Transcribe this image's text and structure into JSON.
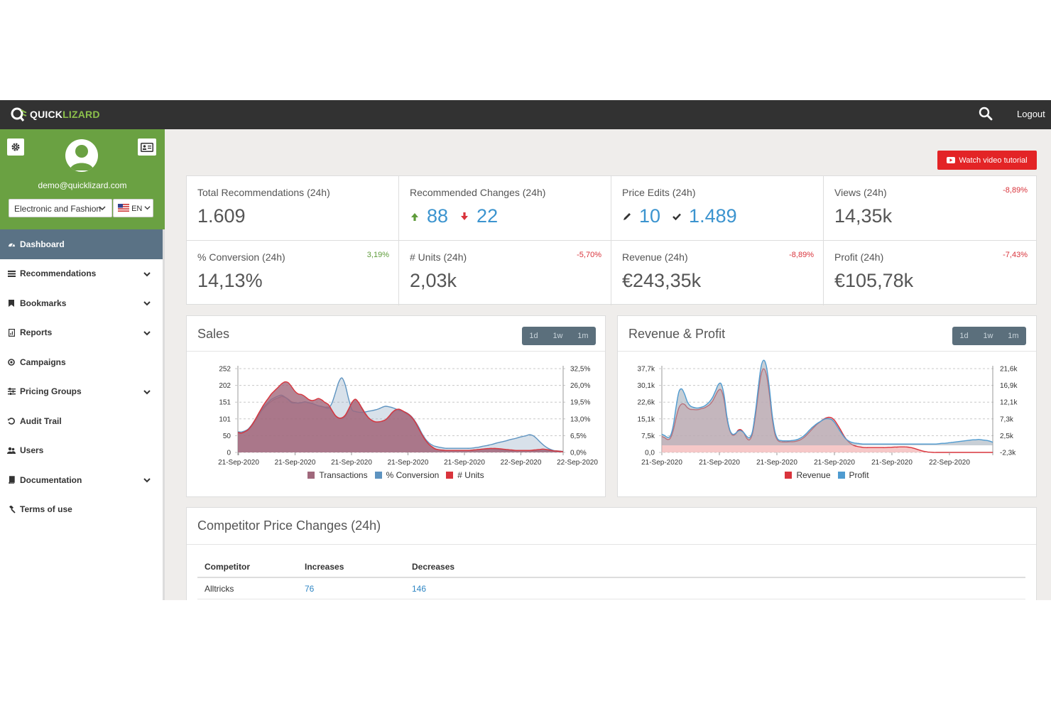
{
  "app": {
    "logo_primary": "QUICK",
    "logo_secondary": "LIZARD",
    "logout": "Logout",
    "watch_tutorial": "Watch video tutorial"
  },
  "user": {
    "email": "demo@quicklizard.com",
    "shop_selected": "Electronic and Fashion",
    "lang_selected": "EN"
  },
  "nav": [
    {
      "label": "Dashboard",
      "icon": "dashboard-icon",
      "active": true,
      "expandable": false
    },
    {
      "label": "Recommendations",
      "icon": "list-icon",
      "expandable": true
    },
    {
      "label": "Bookmarks",
      "icon": "bookmark-icon",
      "expandable": true
    },
    {
      "label": "Reports",
      "icon": "report-icon",
      "expandable": true
    },
    {
      "label": "Campaigns",
      "icon": "campaign-icon",
      "expandable": false
    },
    {
      "label": "Pricing Groups",
      "icon": "sliders-icon",
      "expandable": true
    },
    {
      "label": "Audit Trail",
      "icon": "history-icon",
      "expandable": false
    },
    {
      "label": "Users",
      "icon": "users-icon",
      "expandable": false
    },
    {
      "label": "Documentation",
      "icon": "book-icon",
      "expandable": true
    },
    {
      "label": "Terms of use",
      "icon": "gavel-icon",
      "expandable": false
    }
  ],
  "stats": {
    "total_recommendations": {
      "label": "Total Recommendations (24h)",
      "value": "1.609"
    },
    "recommended_changes": {
      "label": "Recommended Changes (24h)",
      "up": "88",
      "down": "22"
    },
    "price_edits": {
      "label": "Price Edits (24h)",
      "edited": "10",
      "approved": "1.489"
    },
    "views": {
      "label": "Views (24h)",
      "value": "14,35k",
      "change": "-8,89%"
    },
    "conversion": {
      "label": "% Conversion (24h)",
      "value": "14,13%",
      "change": "3,19%"
    },
    "units": {
      "label": "# Units (24h)",
      "value": "2,03k",
      "change": "-5,70%"
    },
    "revenue": {
      "label": "Revenue (24h)",
      "value": "€243,35k",
      "change": "-8,89%"
    },
    "profit": {
      "label": "Profit (24h)",
      "value": "€105,78k",
      "change": "-7,43%"
    }
  },
  "sales_panel": {
    "title": "Sales",
    "ranges": [
      "1d",
      "1w",
      "1m"
    ]
  },
  "revprofit_panel": {
    "title": "Revenue & Profit",
    "ranges": [
      "1d",
      "1w",
      "1m"
    ]
  },
  "colors": {
    "brand_green": "#6aa142",
    "topbar": "#323232",
    "active_nav": "#5a7285",
    "link_blue": "#3c94cf",
    "negative": "#d9333b",
    "positive": "#5f9c3b",
    "transactions": "#a0687c",
    "conversion": "#5d93c0",
    "units": "#d9343c",
    "revenue": "#d9343c",
    "profit": "#4f9bd0"
  },
  "chart_data": [
    {
      "type": "area",
      "title": "Sales",
      "x_tick_labels": [
        "21-Sep-2020",
        "21-Sep-2020",
        "21-Sep-2020",
        "21-Sep-2020",
        "21-Sep-2020",
        "22-Sep-2020",
        "22-Sep-2020",
        "22-Sep-2020"
      ],
      "y_left_ticks": [
        "0",
        "50",
        "101",
        "151",
        "202",
        "252"
      ],
      "y_right_ticks": [
        "0,0%",
        "6,5%",
        "13,0%",
        "19,5%",
        "26,0%",
        "32,5%"
      ],
      "ylim_left": [
        0,
        252
      ],
      "ylim_right": [
        0,
        32.5
      ],
      "x": [
        0,
        1,
        2,
        3,
        4,
        5,
        6,
        7,
        8,
        9,
        10,
        11,
        12,
        13,
        14,
        15,
        16,
        17,
        18,
        19,
        20,
        21,
        22,
        23,
        24,
        25,
        26,
        27,
        28,
        29,
        30,
        31,
        32,
        33,
        34,
        35,
        36,
        37,
        38,
        39,
        40,
        41,
        42,
        43,
        44,
        45,
        46,
        47,
        48,
        49,
        50,
        51,
        52,
        53,
        54,
        55,
        56,
        57,
        58,
        59,
        60,
        61,
        62,
        63,
        64,
        65,
        66,
        67,
        68,
        69,
        70,
        71,
        72,
        73,
        74,
        75,
        76,
        77,
        78,
        79,
        80,
        81,
        82,
        83,
        84,
        85,
        86,
        87,
        88,
        89,
        90,
        91,
        92,
        93,
        94,
        95,
        96,
        97
      ],
      "series": [
        {
          "name": "Transactions",
          "color": "#a0687c",
          "values": [
            60,
            58,
            62,
            68,
            78,
            92,
            108,
            124,
            136,
            146,
            154,
            160,
            164,
            168,
            166,
            160,
            152,
            150,
            148,
            150,
            152,
            150,
            148,
            144,
            140,
            138,
            136,
            136,
            126,
            112,
            104,
            102,
            108,
            126,
            148,
            160,
            150,
            134,
            118,
            104,
            96,
            92,
            92,
            94,
            98,
            106,
            118,
            126,
            128,
            124,
            118,
            112,
            102,
            88,
            70,
            52,
            36,
            24,
            16,
            10,
            8,
            7,
            6,
            6,
            6,
            6,
            6,
            6,
            6,
            6,
            7,
            8,
            9,
            10,
            10,
            10,
            10,
            9,
            8,
            7,
            6,
            6,
            5,
            5,
            5,
            5,
            5,
            5,
            5,
            5,
            5,
            5,
            5,
            5,
            5,
            5,
            4,
            3
          ]
        },
        {
          "name": "% Conversion",
          "color": "#5d93c0",
          "values": [
            8.0,
            7.9,
            8.3,
            9.0,
            10.5,
            12.4,
            14.5,
            16.5,
            18.1,
            19.4,
            20.6,
            21.3,
            21.9,
            22.2,
            21.5,
            20.5,
            19.3,
            19.2,
            19.2,
            19.3,
            19.6,
            19.3,
            19.0,
            18.6,
            18.1,
            17.9,
            17.4,
            17.2,
            19.0,
            22.8,
            27.0,
            28.9,
            26.2,
            20.9,
            16.6,
            15.9,
            15.6,
            15.5,
            15.7,
            16.0,
            16.2,
            16.5,
            16.9,
            17.5,
            17.9,
            17.7,
            17.4,
            16.9,
            16.3,
            16.0,
            15.6,
            14.8,
            13.6,
            11.8,
            9.6,
            7.1,
            5.1,
            3.7,
            2.8,
            2.3,
            2.0,
            1.8,
            1.6,
            1.6,
            1.6,
            1.6,
            1.6,
            1.6,
            1.6,
            1.6,
            1.7,
            1.9,
            2.1,
            2.4,
            2.6,
            2.9,
            3.2,
            3.6,
            3.9,
            4.2,
            4.5,
            4.9,
            5.2,
            5.5,
            5.9,
            6.2,
            6.5,
            6.9,
            6.5,
            5.5,
            4.2,
            3.0,
            2.0,
            1.3,
            0.8,
            0.5,
            0.4,
            0.3
          ]
        },
        {
          "name": "# Units",
          "color": "#d9343c",
          "values": [
            60,
            58,
            62,
            68,
            80,
            96,
            114,
            132,
            148,
            162,
            176,
            186,
            196,
            206,
            212,
            210,
            198,
            184,
            176,
            174,
            168,
            160,
            156,
            158,
            162,
            158,
            150,
            144,
            128,
            112,
            104,
            104,
            112,
            130,
            150,
            160,
            150,
            132,
            116,
            104,
            96,
            92,
            92,
            94,
            98,
            108,
            120,
            128,
            130,
            126,
            120,
            114,
            104,
            90,
            70,
            52,
            36,
            24,
            16,
            10,
            8,
            7,
            6,
            6,
            6,
            6,
            6,
            6,
            6,
            6,
            7,
            8,
            9,
            10,
            11,
            12,
            12,
            12,
            11,
            10,
            9,
            8,
            7,
            6,
            6,
            6,
            6,
            6,
            7,
            8,
            9,
            10,
            9,
            7,
            5,
            4,
            3,
            2
          ]
        }
      ],
      "legend": [
        "Transactions",
        "% Conversion",
        "# Units"
      ]
    },
    {
      "type": "area",
      "title": "Revenue & Profit",
      "x_tick_labels": [
        "21-Sep-2020",
        "21-Sep-2020",
        "21-Sep-2020",
        "21-Sep-2020",
        "21-Sep-2020",
        "22-Sep-2020"
      ],
      "y_left_ticks": [
        "0,0",
        "7,5k",
        "15,1k",
        "22,6k",
        "30,1k",
        "37,7k"
      ],
      "y_right_ticks": [
        "-2,3k",
        "2,5k",
        "7,3k",
        "12,1k",
        "16,9k",
        "21,6k"
      ],
      "ylim_left": [
        0,
        37.7
      ],
      "ylim_right": [
        -2.3,
        21.6
      ],
      "x": [
        0,
        1,
        2,
        3,
        4,
        5,
        6,
        7,
        8,
        9,
        10,
        11,
        12,
        13,
        14,
        15,
        16,
        17,
        18,
        19,
        20,
        21,
        22,
        23,
        24,
        25,
        26,
        27,
        28,
        29,
        30,
        31,
        32,
        33,
        34,
        35,
        36,
        37,
        38,
        39,
        40,
        41,
        42,
        43,
        44,
        45,
        46,
        47,
        48,
        49,
        50,
        51,
        52,
        53,
        54,
        55,
        56,
        57,
        58,
        59,
        60,
        61,
        62,
        63,
        64,
        65,
        66,
        67,
        68,
        69,
        70,
        71,
        72,
        73,
        74,
        75,
        76,
        77,
        78,
        79,
        80,
        81,
        82,
        83,
        84,
        85,
        86,
        87,
        88,
        89,
        90,
        91,
        92,
        93,
        94,
        95,
        96,
        97,
        98,
        99,
        100,
        101,
        102,
        103,
        104,
        105,
        106,
        107,
        108,
        109,
        110,
        111,
        112,
        113,
        114,
        115,
        116,
        117
      ],
      "series": [
        {
          "name": "Revenue",
          "color": "#d9343c",
          "values": [
            7.2,
            6.6,
            5.8,
            6.4,
            9.8,
            15.3,
            20.0,
            21.8,
            21.6,
            20.2,
            19.4,
            19.3,
            19.2,
            19.3,
            19.7,
            20.0,
            20.7,
            21.6,
            23.2,
            25.7,
            27.9,
            28.0,
            23.6,
            15.3,
            9.9,
            7.8,
            8.2,
            10.0,
            10.2,
            8.8,
            6.4,
            5.7,
            8.3,
            15.6,
            25.5,
            34.5,
            37.6,
            34.8,
            26.4,
            15.5,
            8.2,
            5.4,
            4.8,
            4.7,
            4.7,
            4.8,
            4.8,
            4.9,
            5.2,
            5.7,
            6.5,
            7.6,
            8.9,
            10.3,
            11.6,
            12.8,
            13.8,
            14.8,
            15.5,
            15.8,
            15.6,
            14.5,
            12.7,
            10.6,
            8.3,
            6.3,
            4.8,
            3.7,
            3.1,
            2.7,
            2.5,
            2.3,
            2.2,
            2.2,
            2.2,
            2.2,
            2.2,
            2.2,
            2.2,
            2.2,
            2.3,
            2.3,
            2.4,
            2.4,
            2.5,
            2.5,
            2.5,
            2.4,
            2.2,
            1.9,
            1.5,
            1.1,
            0.7,
            0.4,
            0.2,
            0.1,
            0.0,
            0.0,
            0.0,
            0.0,
            0.0,
            0.0,
            0.0,
            0.0,
            0.0,
            0.0,
            0.0,
            0.0,
            0.0,
            0.0,
            0.0,
            0.0,
            0.0,
            0.0,
            0.0,
            0.0,
            0.0,
            0.0
          ]
        },
        {
          "name": "Profit",
          "color": "#4f9bd0",
          "values": [
            2.9,
            2.5,
            2.0,
            2.4,
            5.2,
            10.5,
            14.9,
            15.8,
            14.4,
            12.2,
            11.0,
            10.6,
            10.4,
            10.4,
            10.6,
            10.9,
            11.5,
            12.3,
            13.5,
            15.3,
            17.1,
            17.2,
            14.0,
            8.0,
            4.2,
            2.9,
            3.1,
            3.8,
            3.9,
            3.3,
            2.3,
            1.9,
            3.6,
            8.7,
            15.5,
            21.8,
            24.0,
            22.1,
            16.2,
            8.6,
            3.6,
            1.5,
            1.1,
            1.0,
            1.0,
            1.0,
            1.1,
            1.2,
            1.4,
            1.8,
            2.3,
            3.0,
            3.9,
            4.7,
            5.4,
            6.0,
            6.5,
            7.0,
            7.3,
            7.3,
            7.1,
            6.3,
            5.1,
            3.8,
            2.6,
            1.6,
            1.0,
            0.6,
            0.4,
            0.3,
            0.2,
            0.1,
            0.1,
            0.1,
            0.1,
            0.1,
            0.1,
            0.1,
            0.1,
            0.1,
            0.1,
            0.1,
            0.1,
            0.1,
            0.1,
            0.1,
            0.1,
            0.1,
            0.1,
            0.1,
            0.1,
            0.1,
            0.1,
            0.1,
            0.1,
            0.1,
            0.1,
            0.1,
            0.2,
            0.3,
            0.3,
            0.4,
            0.5,
            0.6,
            0.7,
            0.8,
            0.9,
            1.0,
            1.1,
            1.2,
            1.3,
            1.3,
            1.4,
            1.3,
            1.2,
            1.1,
            0.9,
            0.6
          ]
        }
      ],
      "legend": [
        "Revenue",
        "Profit"
      ]
    }
  ],
  "competitor": {
    "title": "Competitor Price Changes (24h)",
    "headers": [
      "Competitor",
      "Increases",
      "Decreases"
    ],
    "rows": [
      [
        "Alltricks",
        "76",
        "146"
      ]
    ]
  }
}
